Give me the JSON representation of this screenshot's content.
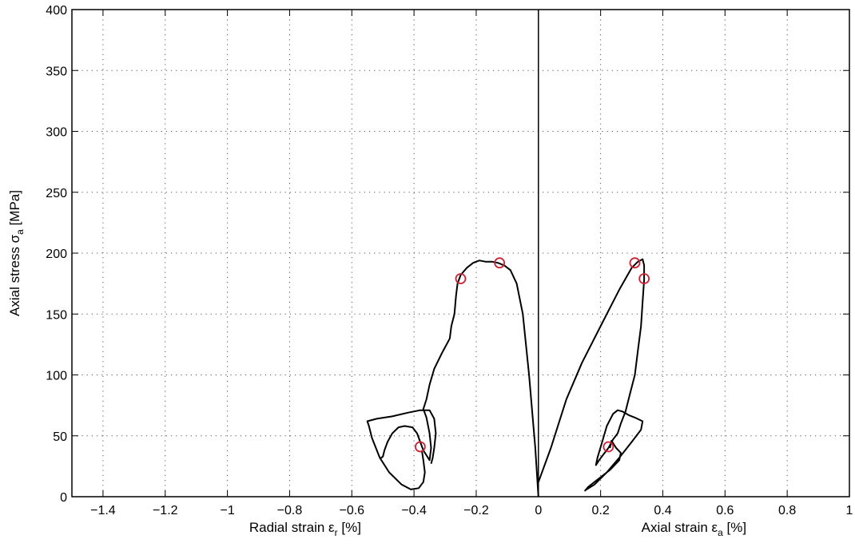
{
  "chart_data": {
    "type": "line",
    "x_range": [
      -1.5,
      1.0
    ],
    "y_range": [
      0,
      400
    ],
    "grid": true,
    "x_ticks": [
      {
        "value": -1.4,
        "label": "−1.4"
      },
      {
        "value": -1.2,
        "label": "−1.2"
      },
      {
        "value": -1.0,
        "label": "−1"
      },
      {
        "value": -0.8,
        "label": "−0.8"
      },
      {
        "value": -0.6,
        "label": "−0.6"
      },
      {
        "value": -0.4,
        "label": "−0.4"
      },
      {
        "value": -0.2,
        "label": "−0.2"
      },
      {
        "value": 0.0,
        "label": "0"
      },
      {
        "value": 0.2,
        "label": "0.2"
      },
      {
        "value": 0.4,
        "label": "0.4"
      },
      {
        "value": 0.6,
        "label": "0.6"
      },
      {
        "value": 0.8,
        "label": "0.8"
      },
      {
        "value": 1.0,
        "label": "1"
      }
    ],
    "y_ticks": [
      {
        "value": 0,
        "label": "0"
      },
      {
        "value": 50,
        "label": "50"
      },
      {
        "value": 100,
        "label": "100"
      },
      {
        "value": 150,
        "label": "150"
      },
      {
        "value": 200,
        "label": "200"
      },
      {
        "value": 250,
        "label": "250"
      },
      {
        "value": 300,
        "label": "300"
      },
      {
        "value": 350,
        "label": "350"
      },
      {
        "value": 400,
        "label": "400"
      }
    ],
    "xlabel_left": {
      "text": "Radial strain ε",
      "sub": "r",
      "suffix": " [%]"
    },
    "xlabel_right": {
      "text": "Axial strain ε",
      "sub": "a",
      "suffix": " [%]"
    },
    "ylabel": {
      "text": "Axial stress σ",
      "sub": "a",
      "suffix": " [MPa]"
    },
    "line_color": "#000000",
    "marker_color": "#cc2233",
    "series": [
      {
        "points": [
          [
            0.0,
            0
          ],
          [
            -0.01,
            40
          ],
          [
            -0.03,
            100
          ],
          [
            -0.05,
            150
          ],
          [
            -0.07,
            175
          ],
          [
            -0.09,
            186
          ],
          [
            -0.11,
            190
          ],
          [
            -0.13,
            192
          ],
          [
            -0.15,
            193
          ],
          [
            -0.17,
            193
          ],
          [
            -0.19,
            194
          ],
          [
            -0.21,
            192
          ],
          [
            -0.23,
            188
          ],
          [
            -0.25,
            182
          ],
          [
            -0.26,
            175
          ],
          [
            -0.265,
            165
          ],
          [
            -0.27,
            150
          ],
          [
            -0.28,
            140
          ],
          [
            -0.285,
            130
          ],
          [
            -0.31,
            118
          ],
          [
            -0.335,
            105
          ],
          [
            -0.35,
            92
          ],
          [
            -0.36,
            80
          ],
          [
            -0.37,
            72
          ],
          [
            -0.36,
            65
          ],
          [
            -0.35,
            52
          ],
          [
            -0.345,
            40
          ],
          [
            -0.35,
            30
          ],
          [
            -0.37,
            38
          ],
          [
            -0.38,
            45
          ],
          [
            -0.39,
            52
          ],
          [
            -0.405,
            57
          ],
          [
            -0.43,
            58
          ],
          [
            -0.45,
            57
          ],
          [
            -0.47,
            52
          ],
          [
            -0.485,
            45
          ],
          [
            -0.495,
            38
          ],
          [
            -0.5,
            33
          ],
          [
            -0.51,
            31
          ]
        ]
      },
      {
        "points": [
          [
            -0.375,
            38
          ],
          [
            -0.37,
            30
          ],
          [
            -0.365,
            20
          ],
          [
            -0.37,
            12
          ],
          [
            -0.385,
            7
          ],
          [
            -0.41,
            6
          ],
          [
            -0.44,
            10
          ],
          [
            -0.48,
            20
          ],
          [
            -0.51,
            32
          ],
          [
            -0.535,
            48
          ],
          [
            -0.545,
            58
          ],
          [
            -0.55,
            62
          ],
          [
            -0.52,
            64
          ],
          [
            -0.47,
            66
          ],
          [
            -0.42,
            69
          ],
          [
            -0.38,
            71
          ],
          [
            -0.35,
            71
          ],
          [
            -0.335,
            64
          ],
          [
            -0.33,
            52
          ],
          [
            -0.335,
            40
          ],
          [
            -0.34,
            32
          ],
          [
            -0.345,
            27
          ]
        ]
      },
      {
        "points": [
          [
            0.0,
            12
          ],
          [
            0.04,
            40
          ],
          [
            0.09,
            80
          ],
          [
            0.14,
            110
          ],
          [
            0.2,
            140
          ],
          [
            0.26,
            170
          ],
          [
            0.3,
            188
          ],
          [
            0.32,
            193
          ],
          [
            0.335,
            195
          ],
          [
            0.34,
            190
          ],
          [
            0.34,
            178
          ],
          [
            0.335,
            160
          ],
          [
            0.33,
            140
          ],
          [
            0.32,
            120
          ],
          [
            0.31,
            100
          ],
          [
            0.295,
            85
          ],
          [
            0.28,
            70
          ],
          [
            0.265,
            60
          ],
          [
            0.255,
            52
          ],
          [
            0.24,
            47
          ],
          [
            0.225,
            40
          ]
        ]
      },
      {
        "points": [
          [
            0.225,
            40
          ],
          [
            0.21,
            35
          ],
          [
            0.195,
            30
          ],
          [
            0.185,
            26
          ],
          [
            0.19,
            32
          ],
          [
            0.205,
            45
          ],
          [
            0.22,
            58
          ],
          [
            0.24,
            68
          ],
          [
            0.255,
            71
          ],
          [
            0.27,
            70
          ],
          [
            0.29,
            67
          ],
          [
            0.31,
            65
          ],
          [
            0.335,
            62
          ],
          [
            0.33,
            55
          ],
          [
            0.3,
            45
          ],
          [
            0.26,
            32
          ],
          [
            0.22,
            20
          ],
          [
            0.18,
            10
          ],
          [
            0.155,
            6
          ],
          [
            0.15,
            5
          ],
          [
            0.16,
            8
          ],
          [
            0.19,
            14
          ],
          [
            0.23,
            22
          ],
          [
            0.26,
            30
          ],
          [
            0.265,
            36
          ],
          [
            0.25,
            40
          ],
          [
            0.235,
            46
          ],
          [
            0.23,
            40
          ]
        ]
      }
    ],
    "markers": [
      [
        -0.125,
        192
      ],
      [
        -0.25,
        179
      ],
      [
        -0.38,
        41
      ],
      [
        0.31,
        192
      ],
      [
        0.34,
        179
      ],
      [
        0.225,
        41
      ]
    ]
  }
}
